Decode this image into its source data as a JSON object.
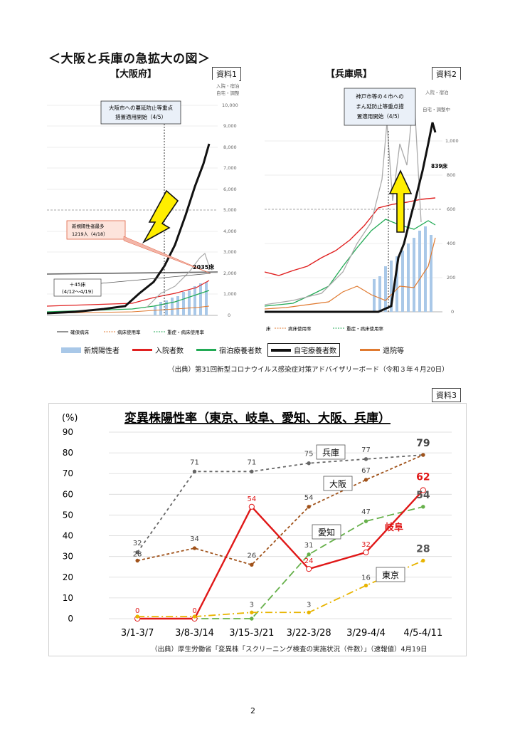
{
  "heading": "＜大阪と兵庫の急拡大の図＞",
  "osaka": {
    "label": "【大阪府】",
    "tag": "資料1",
    "callout": [
      "大阪市への蔓延防止等重点",
      "措置適用開始（4/5）"
    ],
    "peak_box": [
      "新規陽性者最多",
      "1219人（4/18）"
    ],
    "bed_note": "2035床",
    "increase_note": [
      "＋45床",
      "(4/12～4/19)"
    ],
    "right_axis_title": [
      "入院・宿泊",
      "自宅・調整中"
    ],
    "right_ticks": [
      "10,000",
      "9,000",
      "8,000",
      "7,000",
      "6,000",
      "5,000",
      "4,000",
      "3,000",
      "2,000",
      "1,000",
      "0"
    ],
    "bottom_legend": [
      "確保病床",
      "病床使用率",
      "重症・病床使用率"
    ]
  },
  "hyogo": {
    "label": "【兵庫県】",
    "tag": "資料2",
    "callout": [
      "神戸市等の４市への",
      "まん延防止等重点措",
      "置適用開始（4/5）"
    ],
    "right_axis_title": [
      "入院・宿泊",
      "自宅・調整中"
    ],
    "bed_note": "839床",
    "right_ticks": [
      "1,000",
      "800",
      "600",
      "400",
      "200",
      "0"
    ],
    "bottom_legend": [
      "床",
      "病床使用率",
      "重症・病床使用率"
    ]
  },
  "legend": [
    {
      "label": "新規陽性者",
      "color": "#a9c8e8",
      "kind": "bar"
    },
    {
      "label": "入院者数",
      "color": "#e02020",
      "kind": "line"
    },
    {
      "label": "宿泊療養者数",
      "color": "#22aa55",
      "kind": "line"
    },
    {
      "label": "自宅療養者数",
      "color": "#111111",
      "kind": "line"
    },
    {
      "label": "退院等",
      "color": "#e07a30",
      "kind": "line"
    }
  ],
  "source1": "（出典）第31回新型コロナウイルス感染症対策アドバイザリーボード（令和３年４月20日）",
  "tag3": "資料3",
  "chart": {
    "title": "変異株陽性率（東京、岐阜、愛知、大阪、兵庫）",
    "unit": "(%)",
    "y_ticks": [
      "0",
      "10",
      "20",
      "30",
      "40",
      "50",
      "60",
      "70",
      "80",
      "90"
    ],
    "categories": [
      "3/1-3/7",
      "3/8-3/14",
      "3/15-3/21",
      "3/22-3/28",
      "3/29-4/4",
      "4/5-4/11"
    ],
    "ylim": [
      0,
      90
    ],
    "series": [
      {
        "name": "兵庫",
        "color": "#666666",
        "dash": "4,4",
        "values": [
          32,
          71,
          71,
          75,
          77,
          79
        ],
        "labels": [
          "32",
          "71",
          "71",
          "75",
          "77",
          "79"
        ],
        "end_color": "#444444"
      },
      {
        "name": "大阪",
        "color": "#a0521a",
        "dash": "4,3",
        "values": [
          28,
          34,
          26,
          54,
          67,
          79
        ],
        "labels": [
          "28",
          "34",
          "26",
          "54",
          "67",
          ""
        ],
        "end_color": "#a0521a"
      },
      {
        "name": "愛知",
        "color": "#66b04a",
        "dash": "10,5",
        "values": [
          0,
          0,
          0,
          31,
          47,
          54
        ],
        "labels": [
          "",
          "",
          "",
          "31",
          "47",
          "54"
        ],
        "end_color": "#555555"
      },
      {
        "name": "岐阜",
        "color": "#e01818",
        "dash": "",
        "values": [
          0,
          0,
          54,
          24,
          32,
          62
        ],
        "labels": [
          "0",
          "0",
          "54",
          "24",
          "32",
          "62"
        ],
        "end_color": "#e01818"
      },
      {
        "name": "東京",
        "color": "#e8b400",
        "dash": "10,4,2,4",
        "values": [
          1,
          1,
          3,
          3,
          16,
          28
        ],
        "labels": [
          "",
          "",
          "3",
          "3",
          "16",
          "28"
        ],
        "end_color": "#555555"
      }
    ]
  },
  "source2": "（出典）厚生労働省「変異株「スクリーニング検査の実施状況（件数）」（速報値）4月19日",
  "page_number": "2"
}
